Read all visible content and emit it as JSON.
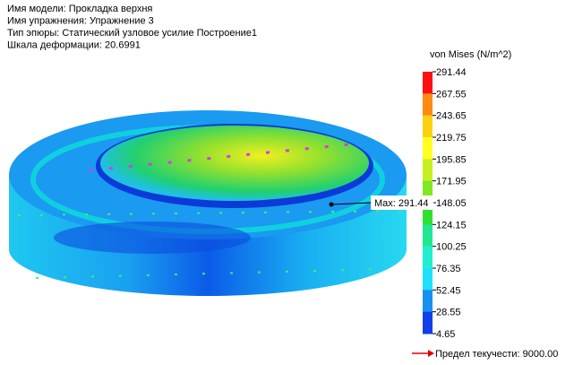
{
  "header": {
    "lines": [
      "Имя модели: Прокладка верхня",
      "Имя упражнения: Упражнение 3",
      "Тип эпюры: Статический узловое усилие Построение1",
      "Шкала деформации: 20.6991"
    ]
  },
  "legend": {
    "title": "von Mises (N/m^2)",
    "labels": [
      "291.44",
      "267.55",
      "243.65",
      "219.75",
      "195.85",
      "171.95",
      "148.05",
      "124.15",
      "100.25",
      "76.35",
      "52.45",
      "28.55",
      "4.65"
    ]
  },
  "max_label": "Max: 291.44",
  "yield_label": "Предел текучести: 9000.00"
}
